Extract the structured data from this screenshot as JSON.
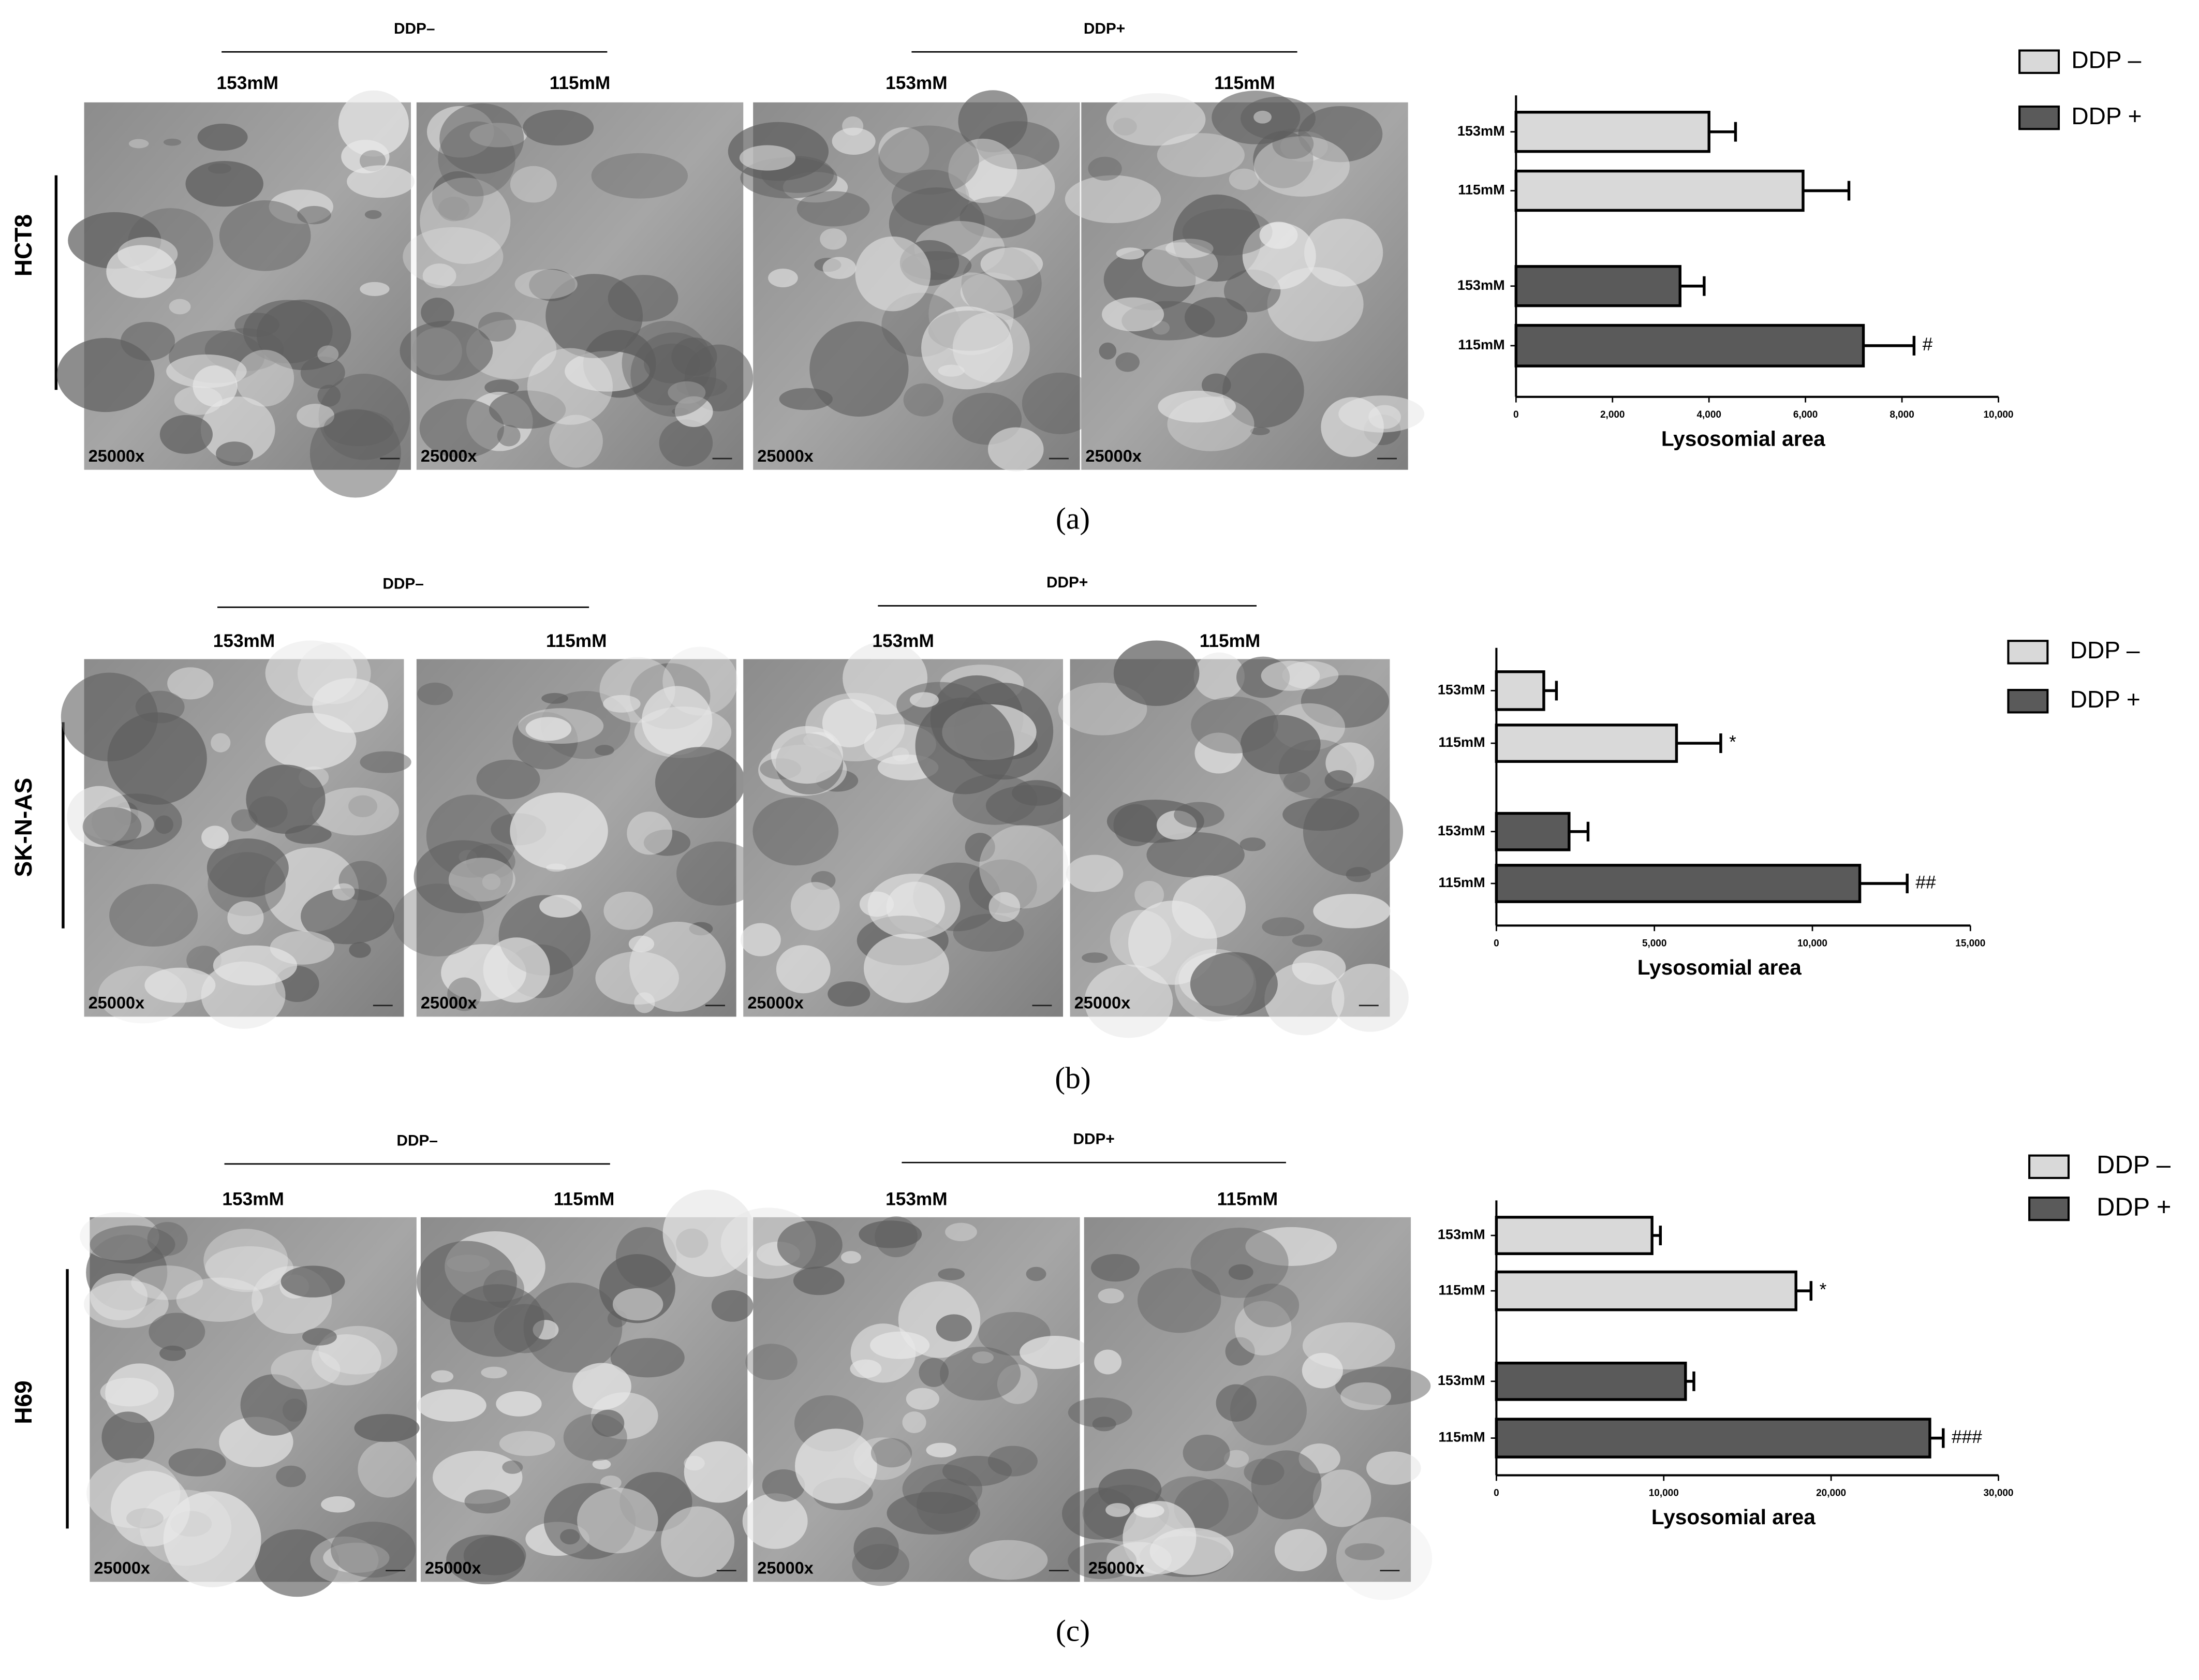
{
  "panels": [
    {
      "cell_line": "HCT8",
      "group_headers": [
        "DDP–",
        "DDP+"
      ],
      "image_labels": [
        "153mM",
        "115mM",
        "153mM",
        "115mM"
      ],
      "magnification": [
        "25000x",
        "25000x",
        "25000x",
        "25000x"
      ],
      "caption": "(a)"
    },
    {
      "cell_line": "SK-N-AS",
      "group_headers": [
        "DDP–",
        "DDP+"
      ],
      "image_labels": [
        "153mM",
        "115mM",
        "153mM",
        "115mM"
      ],
      "magnification": [
        "25000x",
        "25000x",
        "25000x",
        "25000x"
      ],
      "caption": "(b)"
    },
    {
      "cell_line": "H69",
      "group_headers": [
        "DDP–",
        "DDP+"
      ],
      "image_labels": [
        "153mM",
        "115mM",
        "153mM",
        "115mM"
      ],
      "magnification": [
        "25000x",
        "25000x",
        "25000x",
        "25000x"
      ],
      "caption": "(c)"
    }
  ],
  "chart_data": [
    {
      "type": "hbar",
      "x_label": "Lysosomial area",
      "categories": [
        "153mM",
        "115mM",
        "153mM",
        "115mM"
      ],
      "series": [
        {
          "name": "DDP –",
          "color": "#d9d9d9",
          "values": [
            4000,
            5950,
            null,
            null
          ],
          "errors": [
            550,
            950,
            null,
            null
          ],
          "marks": [
            null,
            null,
            null,
            null
          ]
        },
        {
          "name": "DDP +",
          "color": "#5a5a5a",
          "values": [
            null,
            null,
            3400,
            7200
          ],
          "errors": [
            null,
            null,
            500,
            1050
          ],
          "marks": [
            null,
            null,
            null,
            "#"
          ]
        }
      ],
      "xlim": [
        0,
        10000
      ],
      "xticks": [
        0,
        {
          "value": 2000,
          "label": "2,000"
        },
        {
          "value": 4000,
          "label": "4,000"
        },
        {
          "value": 6000,
          "label": "6,000"
        },
        {
          "value": 8000,
          "label": "8,000"
        },
        {
          "value": 10000,
          "label": "10,000"
        }
      ]
    },
    {
      "type": "hbar",
      "x_label": "Lysosomial area",
      "categories": [
        "153mM",
        "115mM",
        "153mM",
        "115mM"
      ],
      "series": [
        {
          "name": "DDP –",
          "color": "#d9d9d9",
          "values": [
            1500,
            5700,
            null,
            null
          ],
          "errors": [
            400,
            1400,
            null,
            null
          ],
          "marks": [
            null,
            "*",
            null,
            null
          ]
        },
        {
          "name": "DDP +",
          "color": "#5a5a5a",
          "values": [
            null,
            null,
            2300,
            11500
          ],
          "errors": [
            null,
            null,
            600,
            1500
          ],
          "marks": [
            null,
            null,
            null,
            "##"
          ]
        }
      ],
      "xlim": [
        0,
        15000
      ],
      "xticks": [
        0,
        {
          "value": 5000,
          "label": "5,000"
        },
        {
          "value": 10000,
          "label": "10,000"
        },
        {
          "value": 15000,
          "label": "15,000"
        }
      ]
    },
    {
      "type": "hbar",
      "x_label": "Lysosomial area",
      "categories": [
        "153mM",
        "115mM",
        "153mM",
        "115mM"
      ],
      "series": [
        {
          "name": "DDP –",
          "color": "#d9d9d9",
          "values": [
            9300,
            17900,
            null,
            null
          ],
          "errors": [
            500,
            900,
            null,
            null
          ],
          "marks": [
            null,
            "*",
            null,
            null
          ]
        },
        {
          "name": "DDP +",
          "color": "#5a5a5a",
          "values": [
            null,
            null,
            11300,
            25900
          ],
          "errors": [
            null,
            null,
            500,
            800
          ],
          "marks": [
            null,
            null,
            null,
            "###"
          ]
        }
      ],
      "xlim": [
        0,
        30000
      ],
      "xticks": [
        0,
        {
          "value": 10000,
          "label": "10,000"
        },
        {
          "value": 20000,
          "label": "20,000"
        },
        {
          "value": 30000,
          "label": "30,000"
        }
      ]
    }
  ]
}
